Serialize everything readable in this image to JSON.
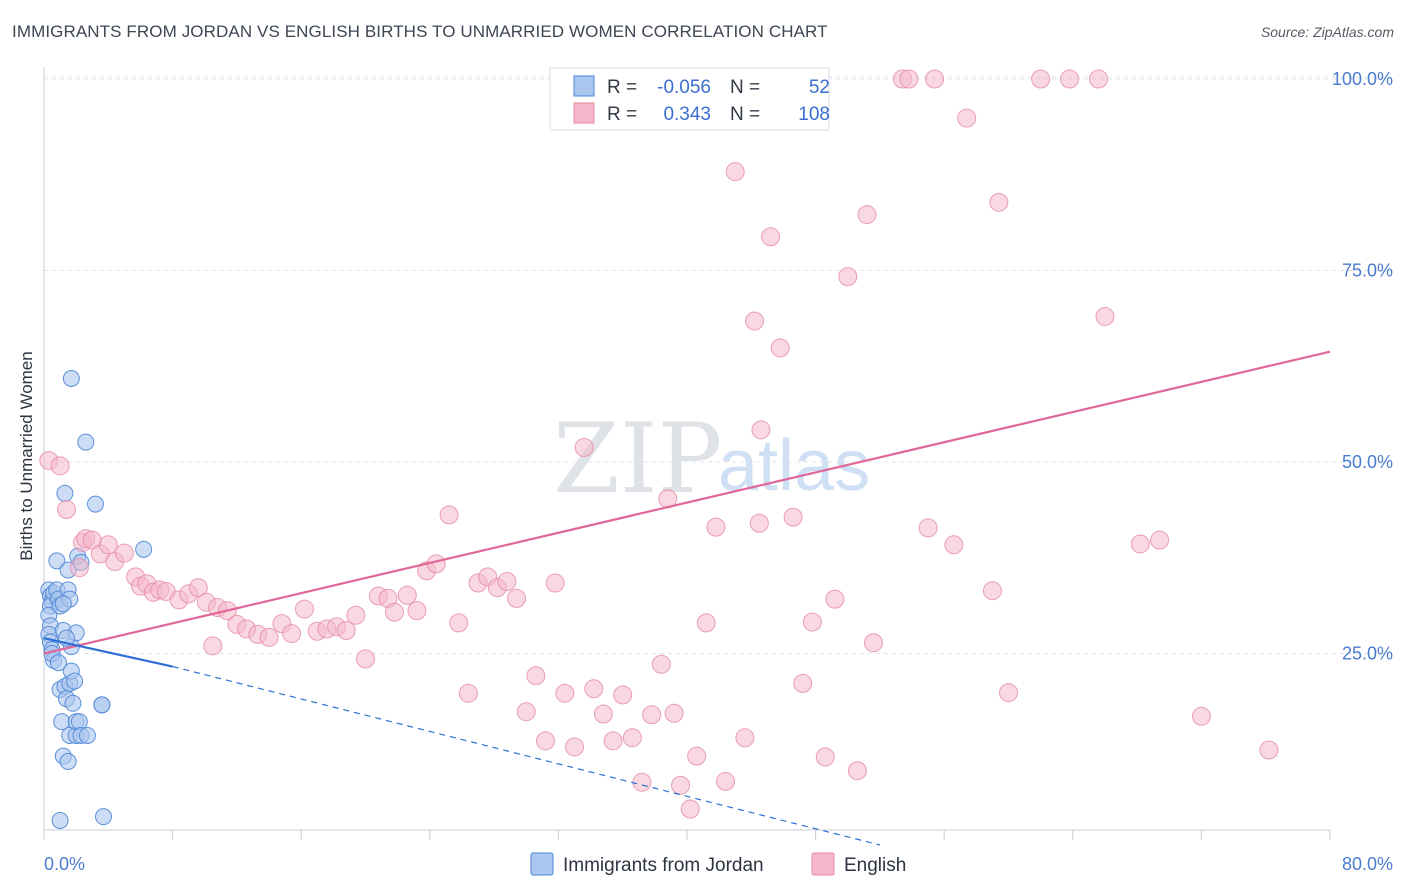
{
  "title": "IMMIGRANTS FROM JORDAN VS ENGLISH BIRTHS TO UNMARRIED WOMEN CORRELATION CHART",
  "source": "Source: ZipAtlas.com",
  "watermark": {
    "part1": "ZIP",
    "part2": "atlas"
  },
  "legend_top": {
    "r_label": "R =",
    "n_label": "N =",
    "rows": [
      {
        "r": "-0.056",
        "n": "52",
        "color": "#aac7ef"
      },
      {
        "r": "0.343",
        "n": "108",
        "color": "#f4b8ca"
      }
    ]
  },
  "legend_bottom": [
    {
      "label": "Immigrants from Jordan",
      "color": "#aac7ef"
    },
    {
      "label": "English",
      "color": "#f4b8ca"
    }
  ],
  "chart_data": {
    "type": "scatter",
    "ylabel": "Births to Unmarried Women",
    "xlabel": "",
    "xlim": [
      0,
      80
    ],
    "ylim": [
      0,
      102
    ],
    "x_tick_labels": [
      "0.0%",
      "80.0%"
    ],
    "y_ticks": [
      {
        "value": 25,
        "label": "25.0%"
      },
      {
        "value": 50,
        "label": "50.0%"
      },
      {
        "value": 75,
        "label": "75.0%"
      },
      {
        "value": 100,
        "label": "100.0%"
      }
    ],
    "grid": true,
    "colors": {
      "jordan_fill": "#aac7ef",
      "jordan_stroke": "#4f86d6",
      "jordan_line": "#2e6fd6",
      "english_fill": "#f4b8ca",
      "english_stroke": "#e58aa6",
      "english_line": "#e0679a"
    },
    "series": [
      {
        "name": "Immigrants from Jordan",
        "trend": {
          "x": [
            0,
            8.0
          ],
          "y": [
            27.0,
            23.3
          ],
          "dashed_to": [
            52.0,
            0
          ]
        },
        "points": [
          [
            0.3,
            33.3
          ],
          [
            0.4,
            32.5
          ],
          [
            0.5,
            31.8
          ],
          [
            0.6,
            32.9
          ],
          [
            0.4,
            31.2
          ],
          [
            0.3,
            30.0
          ],
          [
            0.4,
            28.6
          ],
          [
            0.3,
            27.5
          ],
          [
            0.4,
            26.5
          ],
          [
            0.5,
            25.5
          ],
          [
            0.6,
            24.1
          ],
          [
            0.8,
            37.1
          ],
          [
            0.8,
            33.3
          ],
          [
            0.9,
            32.1
          ],
          [
            1.0,
            31.2
          ],
          [
            1.0,
            20.3
          ],
          [
            1.2,
            28.0
          ],
          [
            1.3,
            20.7
          ],
          [
            1.1,
            16.1
          ],
          [
            1.3,
            45.9
          ],
          [
            1.4,
            19.1
          ],
          [
            1.2,
            11.6
          ],
          [
            1.5,
            10.9
          ],
          [
            1.5,
            33.3
          ],
          [
            1.6,
            32.1
          ],
          [
            1.5,
            35.9
          ],
          [
            1.6,
            14.3
          ],
          [
            1.6,
            21.1
          ],
          [
            1.7,
            22.7
          ],
          [
            1.7,
            60.9
          ],
          [
            1.7,
            25.9
          ],
          [
            1.8,
            18.5
          ],
          [
            1.9,
            21.4
          ],
          [
            2.0,
            27.7
          ],
          [
            2.0,
            14.3
          ],
          [
            2.1,
            37.7
          ],
          [
            2.0,
            16.1
          ],
          [
            2.2,
            16.1
          ],
          [
            2.3,
            36.9
          ],
          [
            2.3,
            14.3
          ],
          [
            2.6,
            52.6
          ],
          [
            2.7,
            14.3
          ],
          [
            3.2,
            44.5
          ],
          [
            3.6,
            18.3
          ],
          [
            3.6,
            18.3
          ],
          [
            6.2,
            38.6
          ],
          [
            1.0,
            3.2
          ],
          [
            3.7,
            3.7
          ],
          [
            0.5,
            25.0
          ],
          [
            1.2,
            31.5
          ],
          [
            0.9,
            23.8
          ],
          [
            1.4,
            27.0
          ]
        ]
      },
      {
        "name": "English",
        "trend": {
          "x": [
            0,
            80
          ],
          "y": [
            25.0,
            64.4
          ]
        },
        "points": [
          [
            0.3,
            50.2
          ],
          [
            1.0,
            49.5
          ],
          [
            1.4,
            43.8
          ],
          [
            2.2,
            36.2
          ],
          [
            2.4,
            39.5
          ],
          [
            2.6,
            40.0
          ],
          [
            3.0,
            39.8
          ],
          [
            3.5,
            38.0
          ],
          [
            4.0,
            39.2
          ],
          [
            4.4,
            37.0
          ],
          [
            5.0,
            38.1
          ],
          [
            5.7,
            35.0
          ],
          [
            6.0,
            33.8
          ],
          [
            6.4,
            34.1
          ],
          [
            6.8,
            33.0
          ],
          [
            7.2,
            33.3
          ],
          [
            7.6,
            33.1
          ],
          [
            8.4,
            32.0
          ],
          [
            9.0,
            32.8
          ],
          [
            9.6,
            33.6
          ],
          [
            10.1,
            31.7
          ],
          [
            10.8,
            31.0
          ],
          [
            11.4,
            30.6
          ],
          [
            12.0,
            28.8
          ],
          [
            12.6,
            28.2
          ],
          [
            13.3,
            27.5
          ],
          [
            14.0,
            27.1
          ],
          [
            14.8,
            28.9
          ],
          [
            15.4,
            27.6
          ],
          [
            16.2,
            30.8
          ],
          [
            17.0,
            27.9
          ],
          [
            17.6,
            28.2
          ],
          [
            18.2,
            28.5
          ],
          [
            18.8,
            28.0
          ],
          [
            19.4,
            30.0
          ],
          [
            20.0,
            24.3
          ],
          [
            20.8,
            32.5
          ],
          [
            21.4,
            32.2
          ],
          [
            21.8,
            30.4
          ],
          [
            22.6,
            32.6
          ],
          [
            23.2,
            30.6
          ],
          [
            23.8,
            35.8
          ],
          [
            24.4,
            36.7
          ],
          [
            25.2,
            43.1
          ],
          [
            25.8,
            29.0
          ],
          [
            26.4,
            19.8
          ],
          [
            27.0,
            34.2
          ],
          [
            27.6,
            35.0
          ],
          [
            28.2,
            33.6
          ],
          [
            28.8,
            34.4
          ],
          [
            29.4,
            32.2
          ],
          [
            30.0,
            17.4
          ],
          [
            30.6,
            22.1
          ],
          [
            31.2,
            13.6
          ],
          [
            31.8,
            34.2
          ],
          [
            32.4,
            19.8
          ],
          [
            33.0,
            12.8
          ],
          [
            33.6,
            51.9
          ],
          [
            34.2,
            20.4
          ],
          [
            34.8,
            17.1
          ],
          [
            35.4,
            13.6
          ],
          [
            36.0,
            19.6
          ],
          [
            36.6,
            14.0
          ],
          [
            37.2,
            8.2
          ],
          [
            37.8,
            17.0
          ],
          [
            38.4,
            23.6
          ],
          [
            38.8,
            45.2
          ],
          [
            39.2,
            17.2
          ],
          [
            39.6,
            7.8
          ],
          [
            40.2,
            4.7
          ],
          [
            40.6,
            11.6
          ],
          [
            41.2,
            29.0
          ],
          [
            41.8,
            41.5
          ],
          [
            42.4,
            8.3
          ],
          [
            43.0,
            87.9
          ],
          [
            43.6,
            14.0
          ],
          [
            44.2,
            68.4
          ],
          [
            44.6,
            54.2
          ],
          [
            45.2,
            79.4
          ],
          [
            45.8,
            64.9
          ],
          [
            46.6,
            42.8
          ],
          [
            47.2,
            21.1
          ],
          [
            47.8,
            29.1
          ],
          [
            48.6,
            11.5
          ],
          [
            49.2,
            32.1
          ],
          [
            50.0,
            74.2
          ],
          [
            50.6,
            9.7
          ],
          [
            51.2,
            82.3
          ],
          [
            51.6,
            26.4
          ],
          [
            53.4,
            100.0
          ],
          [
            53.8,
            100.0
          ],
          [
            55.0,
            41.4
          ],
          [
            55.4,
            100.0
          ],
          [
            56.6,
            39.2
          ],
          [
            57.4,
            94.9
          ],
          [
            59.0,
            33.2
          ],
          [
            59.4,
            83.9
          ],
          [
            60.0,
            19.9
          ],
          [
            62.0,
            100.0
          ],
          [
            63.8,
            100.0
          ],
          [
            65.6,
            100.0
          ],
          [
            66.0,
            69.0
          ],
          [
            68.2,
            39.3
          ],
          [
            69.4,
            39.8
          ],
          [
            72.0,
            16.8
          ],
          [
            76.2,
            12.4
          ],
          [
            44.5,
            42.0
          ],
          [
            10.5,
            26.0
          ]
        ]
      }
    ]
  }
}
